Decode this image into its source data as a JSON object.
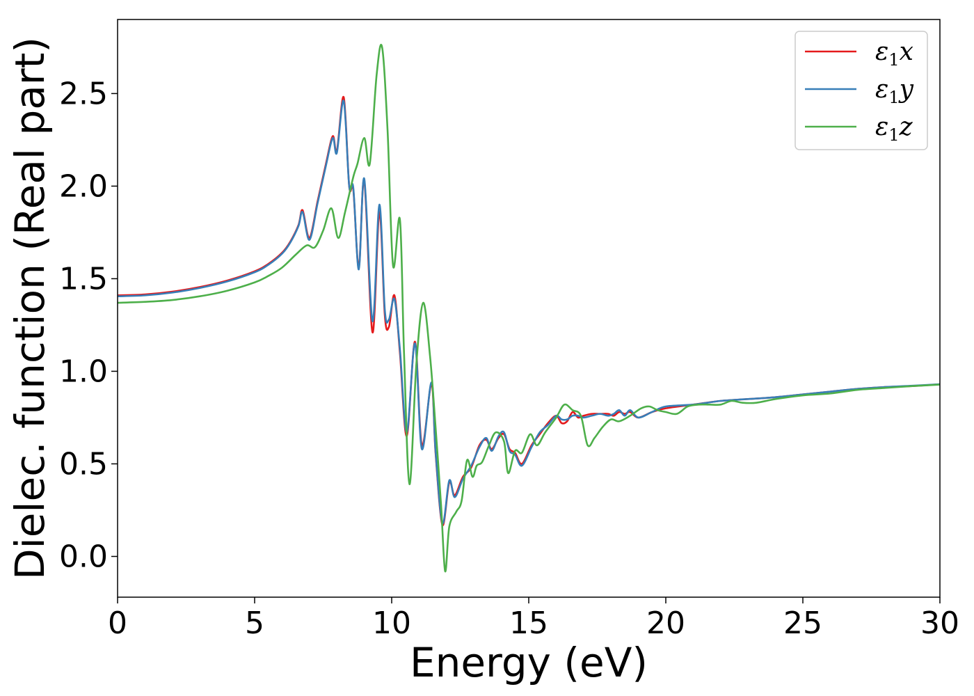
{
  "chart_data": {
    "type": "line",
    "xlabel": "Energy (eV)",
    "ylabel": "Dielec. function (Real part)",
    "xlim": [
      0,
      30
    ],
    "ylim": [
      -0.22,
      2.9
    ],
    "xticks": [
      0,
      5,
      10,
      15,
      20,
      25,
      30
    ],
    "xtick_labels": [
      "0",
      "5",
      "10",
      "15",
      "20",
      "25",
      "30"
    ],
    "yticks": [
      0.0,
      0.5,
      1.0,
      1.5,
      2.0,
      2.5
    ],
    "ytick_labels": [
      "0.0",
      "0.5",
      "1.0",
      "1.5",
      "2.0",
      "2.5"
    ],
    "grid": false,
    "legend_position": "top-right",
    "series": [
      {
        "name": "ε₁x",
        "legend_base": "ε",
        "legend_sub": "1",
        "legend_suffix": "x",
        "color": "#e41a1c",
        "x": [
          0,
          1,
          2,
          3,
          4,
          5,
          5.5,
          6,
          6.3,
          6.6,
          6.75,
          7.0,
          7.3,
          7.6,
          7.85,
          8.0,
          8.25,
          8.45,
          8.6,
          8.8,
          9.0,
          9.3,
          9.55,
          9.75,
          9.9,
          10.1,
          10.3,
          10.55,
          10.85,
          11.1,
          11.45,
          11.6,
          11.85,
          12.1,
          12.3,
          12.6,
          12.9,
          13.2,
          13.45,
          13.65,
          13.9,
          14.1,
          14.3,
          14.5,
          14.75,
          15.1,
          15.4,
          15.7,
          16.0,
          16.2,
          16.4,
          16.6,
          16.8,
          17.0,
          17.3,
          17.6,
          17.9,
          18.1,
          18.3,
          18.5,
          18.7,
          19.0,
          19.5,
          20.0,
          21.0,
          22.0,
          23.0,
          24.0,
          25.0,
          26.0,
          27.0,
          28.0,
          29.0,
          30.0
        ],
        "y": [
          1.41,
          1.415,
          1.43,
          1.455,
          1.49,
          1.54,
          1.58,
          1.64,
          1.7,
          1.79,
          1.87,
          1.72,
          1.92,
          2.12,
          2.27,
          2.19,
          2.48,
          2.0,
          1.98,
          1.56,
          2.03,
          1.21,
          1.86,
          1.3,
          1.24,
          1.41,
          1.1,
          0.65,
          1.16,
          0.6,
          0.93,
          0.56,
          0.17,
          0.4,
          0.33,
          0.43,
          0.48,
          0.6,
          0.63,
          0.58,
          0.64,
          0.66,
          0.58,
          0.56,
          0.5,
          0.6,
          0.66,
          0.72,
          0.76,
          0.72,
          0.73,
          0.78,
          0.75,
          0.76,
          0.77,
          0.77,
          0.77,
          0.76,
          0.78,
          0.77,
          0.78,
          0.75,
          0.78,
          0.8,
          0.82,
          0.84,
          0.85,
          0.86,
          0.875,
          0.89,
          0.905,
          0.915,
          0.92,
          0.93
        ]
      },
      {
        "name": "ε₁y",
        "legend_base": "ε",
        "legend_sub": "1",
        "legend_suffix": "y",
        "color": "#377eb8",
        "x": [
          0,
          1,
          2,
          3,
          4,
          5,
          5.5,
          6,
          6.3,
          6.6,
          6.75,
          7.0,
          7.3,
          7.6,
          7.85,
          8.0,
          8.25,
          8.45,
          8.6,
          8.8,
          9.0,
          9.3,
          9.55,
          9.75,
          9.9,
          10.1,
          10.3,
          10.55,
          10.85,
          11.1,
          11.45,
          11.6,
          11.85,
          12.1,
          12.3,
          12.6,
          12.9,
          13.2,
          13.45,
          13.65,
          13.9,
          14.1,
          14.3,
          14.5,
          14.75,
          15.1,
          15.4,
          15.7,
          16.0,
          16.2,
          16.4,
          16.6,
          16.8,
          17.0,
          17.3,
          17.6,
          17.9,
          18.1,
          18.3,
          18.5,
          18.7,
          19.0,
          19.5,
          20.0,
          21.0,
          22.0,
          23.0,
          24.0,
          25.0,
          26.0,
          27.0,
          28.0,
          29.0,
          30.0
        ],
        "y": [
          1.405,
          1.41,
          1.425,
          1.45,
          1.485,
          1.535,
          1.575,
          1.635,
          1.695,
          1.785,
          1.86,
          1.71,
          1.91,
          2.11,
          2.26,
          2.18,
          2.46,
          2.0,
          1.99,
          1.55,
          2.04,
          1.27,
          1.9,
          1.33,
          1.28,
          1.39,
          1.12,
          0.67,
          1.15,
          0.58,
          0.94,
          0.57,
          0.18,
          0.41,
          0.32,
          0.42,
          0.49,
          0.59,
          0.64,
          0.57,
          0.65,
          0.67,
          0.57,
          0.55,
          0.49,
          0.59,
          0.67,
          0.71,
          0.76,
          0.74,
          0.74,
          0.76,
          0.76,
          0.75,
          0.76,
          0.77,
          0.76,
          0.77,
          0.79,
          0.76,
          0.79,
          0.75,
          0.78,
          0.81,
          0.82,
          0.84,
          0.85,
          0.86,
          0.875,
          0.89,
          0.905,
          0.915,
          0.922,
          0.93
        ]
      },
      {
        "name": "ε₁z",
        "legend_base": "ε",
        "legend_sub": "1",
        "legend_suffix": "z",
        "color": "#4daf4a",
        "x": [
          0,
          1,
          2,
          3,
          4,
          5,
          5.5,
          6,
          6.5,
          6.9,
          7.2,
          7.5,
          7.8,
          8.05,
          8.3,
          8.6,
          8.75,
          9.0,
          9.2,
          9.45,
          9.65,
          9.85,
          10.05,
          10.3,
          10.45,
          10.65,
          10.9,
          11.15,
          11.4,
          11.6,
          11.8,
          11.95,
          12.1,
          12.35,
          12.55,
          12.75,
          12.95,
          13.1,
          13.3,
          13.55,
          13.8,
          14.1,
          14.25,
          14.5,
          14.75,
          15.05,
          15.3,
          15.6,
          16.0,
          16.3,
          16.6,
          16.9,
          17.15,
          17.4,
          17.7,
          18.0,
          18.3,
          18.7,
          19.1,
          19.4,
          19.7,
          20.0,
          20.4,
          20.8,
          21.2,
          21.6,
          22.0,
          22.4,
          22.8,
          23.3,
          24.0,
          25.0,
          26.0,
          27.0,
          28.0,
          29.0,
          30.0
        ],
        "y": [
          1.37,
          1.375,
          1.385,
          1.405,
          1.435,
          1.48,
          1.515,
          1.56,
          1.63,
          1.68,
          1.67,
          1.76,
          1.88,
          1.72,
          1.86,
          2.05,
          2.12,
          2.26,
          2.12,
          2.6,
          2.75,
          2.3,
          1.57,
          1.82,
          1.1,
          0.39,
          1.04,
          1.37,
          1.08,
          0.7,
          0.28,
          -0.08,
          0.16,
          0.24,
          0.3,
          0.52,
          0.43,
          0.49,
          0.51,
          0.6,
          0.67,
          0.62,
          0.45,
          0.57,
          0.56,
          0.66,
          0.6,
          0.67,
          0.75,
          0.82,
          0.79,
          0.76,
          0.6,
          0.64,
          0.7,
          0.74,
          0.73,
          0.76,
          0.8,
          0.81,
          0.79,
          0.78,
          0.77,
          0.81,
          0.82,
          0.82,
          0.82,
          0.84,
          0.83,
          0.83,
          0.85,
          0.87,
          0.88,
          0.9,
          0.91,
          0.92,
          0.928
        ]
      }
    ]
  }
}
